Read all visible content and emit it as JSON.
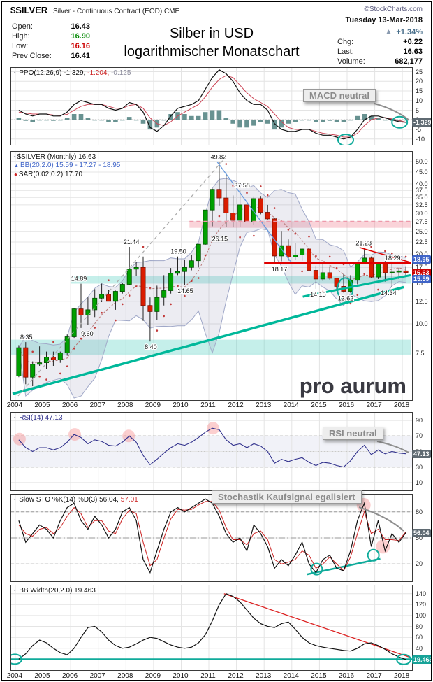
{
  "header": {
    "symbol": "$SILVER",
    "description": "Silver - Continuous Contract (EOD) CME",
    "copyright": "©StockCharts.com",
    "date": "Tuesday 13-Mar-2018",
    "open_label": "Open:",
    "open": "16.43",
    "high_label": "High:",
    "high": "16.90",
    "low_label": "Low:",
    "low": "16.16",
    "prev_close_label": "Prev Close:",
    "prev_close": "16.41",
    "title_line1": "Silber in USD",
    "title_line2": "logarithmischer Monatschart",
    "up_arrow": "▲",
    "change_pct": "+1.34%",
    "chg_label": "Chg:",
    "chg": "+0.22",
    "last_label": "Last:",
    "last": "16.63",
    "volume_label": "Volume:",
    "volume": "682,177"
  },
  "watermark": "pro aurum",
  "panels": {
    "ppo": {
      "icon": "▪",
      "label": "PPO(12,26,9)",
      "v1": "-1.329,",
      "v2": "-1.204,",
      "v3": "-0.125",
      "tag": "-1.329"
    },
    "price": {
      "icon": "▪",
      "label": "$SILVER (Monthly) 16.63",
      "bb_icon": "▲",
      "bb_label": "BB(20,2.0) 15.59 - 17.27 - 18.95",
      "sar_icon": "●",
      "sar_label": "SAR(0.02,0.2) 17.70",
      "tags": [
        {
          "text": "18.95",
          "value": 18.95,
          "color": "#3f64c8"
        },
        {
          "text": "16.63",
          "value": 16.63,
          "color": "#cc0000"
        },
        {
          "text": "15.59",
          "value": 15.59,
          "color": "#3f64c8"
        }
      ]
    },
    "rsi": {
      "icon": "▪",
      "label": "RSI(14) 47.13",
      "tag": "47.13"
    },
    "sto": {
      "icon": "▪",
      "label": "Slow STO %K(14) %D(3) 56.04,",
      "label_red": "57.01",
      "tag": "56.04"
    },
    "bbw": {
      "icon": "▪",
      "label": "BB Width(20,2.0) 19.463",
      "tag": "19.463"
    }
  },
  "x_axis": {
    "years": [
      2004,
      2005,
      2006,
      2007,
      2008,
      2009,
      2010,
      2011,
      2012,
      2013,
      2014,
      2015,
      2016,
      2017,
      2018
    ]
  },
  "chart_data": [
    {
      "id": "ppo",
      "type": "line+histogram",
      "title": "PPO(12,26,9)",
      "annotation": "MACD neutral",
      "ylim": [
        -13,
        27
      ],
      "yticks": [
        25,
        20,
        15,
        10,
        5,
        0,
        -5,
        -10
      ],
      "x_start": 2004.125,
      "x_step_years": 0.25,
      "last": {
        "ppo": -1.329,
        "signal": -1.204,
        "hist": -0.125
      },
      "series": [
        {
          "name": "PPO",
          "color": "#111111",
          "values": [
            5,
            3,
            2,
            3,
            3,
            2,
            2,
            4,
            8,
            10,
            9,
            8,
            8,
            6,
            5,
            6,
            9,
            8,
            4,
            -4,
            -6,
            -3,
            2,
            6,
            7,
            8,
            10,
            16,
            22,
            26,
            24,
            20,
            14,
            10,
            8,
            8,
            5,
            -2,
            -5,
            -6,
            -6,
            -5,
            -5,
            -7,
            -8,
            -8,
            -9,
            -10,
            -9,
            -5,
            0,
            2,
            2,
            1,
            0,
            -1,
            -1.329
          ]
        },
        {
          "name": "Signal",
          "color": "#cc4455",
          "values": [
            4,
            3.5,
            3,
            3,
            3,
            2.5,
            2.3,
            2.8,
            5,
            7,
            8,
            8,
            8,
            7,
            6,
            6,
            7.5,
            8,
            6,
            1,
            -2,
            -3,
            -1,
            2,
            4,
            6,
            8,
            12,
            17,
            21,
            23,
            22,
            18,
            14,
            11,
            9,
            7,
            3,
            -1,
            -4,
            -5,
            -5,
            -5,
            -6,
            -7,
            -7.5,
            -8,
            -9,
            -9,
            -7,
            -3,
            0,
            1,
            1.2,
            0.5,
            -0.3,
            -1.204
          ]
        }
      ],
      "highlight_circles": [
        {
          "x": 2015.95,
          "y": -10.5
        },
        {
          "x": 2017.9,
          "y": -1.3
        }
      ]
    },
    {
      "id": "price",
      "type": "candlestick",
      "title": "$SILVER (Monthly) 16.63",
      "log_scale": true,
      "ylim": [
        4.7,
        55
      ],
      "yticks": [
        50,
        45,
        40,
        37.5,
        35,
        32.5,
        30,
        27.5,
        25,
        22.5,
        20,
        17.5,
        15,
        12.5,
        10,
        7.5
      ],
      "x_start": 2004.125,
      "x_step_years": 0.25,
      "bollinger": {
        "params": "20,2.0",
        "lower": 15.59,
        "mid": 17.27,
        "upper": 18.95
      },
      "sar": 17.7,
      "last": 16.63,
      "open": [
        5.97,
        7.9,
        5.9,
        6.7,
        6.8,
        7.2,
        7.0,
        7.5,
        8.8,
        11.6,
        10.9,
        11.5,
        12.9,
        13.4,
        12.5,
        13.8,
        14.8,
        17.2,
        17.5,
        12.0,
        11.3,
        13.0,
        13.9,
        16.5,
        16.8,
        17.5,
        18.7,
        22.0,
        30.9,
        37.9,
        34.8,
        30.0,
        27.9,
        32.5,
        27.6,
        34.6,
        30.2,
        28.3,
        19.6,
        21.7,
        19.4,
        19.8,
        21.0,
        17.0,
        15.6,
        16.6,
        15.7,
        14.5,
        13.8,
        15.4,
        18.4,
        19.2,
        15.9,
        18.2,
        16.6,
        16.7,
        16.9
      ],
      "high": [
        8.1,
        8.35,
        6.9,
        8.0,
        7.6,
        7.6,
        7.6,
        9.0,
        11.7,
        14.89,
        13.0,
        14.1,
        14.9,
        14.0,
        13.9,
        15.0,
        21.44,
        18.4,
        19.5,
        13.0,
        14.6,
        16.2,
        17.4,
        19.5,
        18.9,
        19.8,
        22.1,
        30.9,
        38.2,
        49.82,
        44.3,
        35.7,
        37.58,
        33.3,
        35.4,
        35.5,
        32.5,
        28.6,
        25.1,
        23.1,
        22.2,
        21.1,
        21.6,
        17.8,
        18.5,
        17.7,
        15.8,
        16.4,
        16.2,
        18.4,
        21.23,
        19.5,
        18.5,
        18.7,
        18.29,
        17.4,
        17.7
      ],
      "low": [
        5.9,
        5.5,
        5.4,
        6.6,
        6.4,
        6.6,
        6.8,
        7.3,
        8.7,
        9.6,
        9.9,
        10.7,
        12.4,
        12.5,
        11.5,
        13.5,
        14.7,
        16.1,
        10.3,
        8.4,
        10.4,
        12.0,
        13.5,
        16.2,
        14.65,
        17.0,
        17.5,
        21.9,
        26.3,
        32.3,
        26.1,
        26.0,
        26.2,
        26.1,
        26.6,
        29.6,
        28.1,
        18.17,
        18.6,
        18.7,
        18.8,
        18.7,
        16.8,
        14.15,
        15.3,
        15.5,
        13.9,
        13.62,
        13.6,
        14.8,
        18.2,
        15.7,
        15.6,
        15.2,
        14.34,
        15.6,
        16.1
      ],
      "close": [
        7.9,
        5.9,
        6.7,
        6.8,
        7.2,
        7.0,
        7.5,
        8.8,
        11.6,
        10.9,
        11.5,
        12.9,
        13.4,
        12.5,
        13.8,
        14.8,
        17.2,
        17.5,
        12.0,
        11.3,
        13.0,
        13.9,
        16.5,
        16.8,
        17.5,
        18.7,
        22.0,
        30.9,
        37.9,
        34.8,
        30.0,
        27.9,
        32.5,
        27.6,
        34.6,
        30.2,
        28.3,
        19.6,
        21.7,
        19.4,
        19.8,
        21.0,
        17.0,
        15.6,
        16.6,
        15.7,
        14.5,
        13.8,
        15.4,
        18.4,
        19.2,
        15.9,
        18.2,
        16.6,
        16.7,
        16.9,
        16.63
      ],
      "annotations": [
        {
          "x": 2004.4,
          "y": 8.35,
          "text": "8.35",
          "pos": "above"
        },
        {
          "x": 2006.3,
          "y": 14.89,
          "text": "14.89",
          "pos": "above"
        },
        {
          "x": 2006.6,
          "y": 9.6,
          "text": "9.60",
          "pos": "below"
        },
        {
          "x": 2008.2,
          "y": 21.44,
          "text": "21.44",
          "pos": "above"
        },
        {
          "x": 2008.9,
          "y": 8.4,
          "text": "8.40",
          "pos": "below"
        },
        {
          "x": 2009.9,
          "y": 19.5,
          "text": "19.50",
          "pos": "above"
        },
        {
          "x": 2010.15,
          "y": 14.65,
          "text": "14.65",
          "pos": "below"
        },
        {
          "x": 2011.35,
          "y": 49.82,
          "text": "49.82",
          "pos": "above"
        },
        {
          "x": 2011.4,
          "y": 24.5,
          "text": "26.15",
          "pos": "below"
        },
        {
          "x": 2012.2,
          "y": 37.58,
          "text": "37.58",
          "pos": "above"
        },
        {
          "x": 2013.55,
          "y": 18.17,
          "text": "18.17",
          "pos": "below"
        },
        {
          "x": 2014.95,
          "y": 14.15,
          "text": "14.15",
          "pos": "below"
        },
        {
          "x": 2015.95,
          "y": 13.62,
          "text": "13.62",
          "pos": "below"
        },
        {
          "x": 2016.6,
          "y": 21.23,
          "text": "21.23",
          "pos": "above"
        },
        {
          "x": 2017.65,
          "y": 18.29,
          "text": "18.29",
          "pos": "above"
        },
        {
          "x": 2017.5,
          "y": 14.34,
          "text": "14.34",
          "pos": "below"
        }
      ],
      "zones": [
        {
          "x1": 2010.3,
          "x2": 2018.32,
          "y1": 25.9,
          "y2": 27.6,
          "color": "rgba(242,130,145,0.35)"
        },
        {
          "x1": 2006.0,
          "x2": 2018.32,
          "y1": 14.9,
          "y2": 16.05,
          "color": "rgba(80,205,190,0.33)"
        },
        {
          "x1": 2003.85,
          "x2": 2018.32,
          "y1": 7.35,
          "y2": 8.55,
          "color": "rgba(80,205,190,0.33)"
        }
      ],
      "lines": [
        {
          "x1": 2003.9,
          "y1": 5.0,
          "x2": 2018.05,
          "y2": 14.4,
          "color": "#00b89a",
          "width": 3.5
        },
        {
          "x1": 2014.4,
          "y1": 13.1,
          "x2": 2018.3,
          "y2": 16.2,
          "color": "#00b89a",
          "width": 3
        },
        {
          "x1": 2013.0,
          "y1": 18.25,
          "x2": 2018.32,
          "y2": 18.25,
          "color": "#e00000",
          "width": 2.5
        },
        {
          "x1": 2016.45,
          "y1": 21.3,
          "x2": 2018.32,
          "y2": 18.35,
          "color": "#e00000",
          "width": 1.5
        },
        {
          "x1": 2011.3,
          "y1": 49.8,
          "x2": 2013.95,
          "y2": 18.6,
          "color": "#6699dd",
          "width": 1.3
        },
        {
          "x1": 2004.1,
          "y1": 4.9,
          "x2": 2011.6,
          "y2": 52.0,
          "color": "#aaaaaa",
          "width": 1.2,
          "dash": "5,4"
        },
        {
          "x1": 2010.3,
          "y1": 27.6,
          "x2": 2018.32,
          "y2": 27.6,
          "color": "#ee99aa",
          "width": 1.5,
          "dash": "6,4"
        }
      ],
      "circles": [
        {
          "x": 2015.93,
          "y": 14.1
        }
      ]
    },
    {
      "id": "rsi",
      "type": "line",
      "title": "RSI(14)",
      "annotation": "RSI neutral",
      "ylim": [
        0,
        100
      ],
      "yticks": [
        90,
        70,
        50,
        30,
        10
      ],
      "band": [
        30,
        70
      ],
      "last": 47.13,
      "x_start": 2004.125,
      "x_step_years": 0.25,
      "values": [
        65,
        55,
        50,
        55,
        55,
        52,
        55,
        62,
        72,
        68,
        60,
        65,
        63,
        58,
        57,
        62,
        70,
        62,
        45,
        33,
        40,
        48,
        55,
        60,
        58,
        62,
        68,
        75,
        80,
        78,
        65,
        58,
        60,
        55,
        60,
        57,
        50,
        35,
        40,
        37,
        40,
        42,
        36,
        32,
        36,
        35,
        32,
        30,
        38,
        50,
        58,
        46,
        52,
        47,
        50,
        48,
        47.13
      ],
      "highlight_circles": [
        {
          "x": 2004.15,
          "y": 66
        },
        {
          "x": 2006.15,
          "y": 72
        },
        {
          "x": 2008.1,
          "y": 70
        },
        {
          "x": 2011.15,
          "y": 80
        }
      ]
    },
    {
      "id": "sto",
      "type": "line",
      "title": "Slow STO %K(14) %D(3)",
      "annotation": "Stochastik Kaufsignal egalisiert",
      "ylim": [
        0,
        100
      ],
      "yticks": [
        80,
        50,
        20
      ],
      "last_k": 56.04,
      "last_d": 57.01,
      "x_start": 2004.125,
      "x_step_years": 0.25,
      "k": [
        70,
        45,
        55,
        65,
        60,
        50,
        70,
        85,
        90,
        70,
        60,
        75,
        65,
        50,
        60,
        80,
        85,
        70,
        25,
        10,
        35,
        60,
        80,
        85,
        80,
        85,
        90,
        95,
        90,
        75,
        55,
        45,
        50,
        35,
        65,
        55,
        40,
        15,
        25,
        18,
        30,
        45,
        20,
        10,
        25,
        30,
        15,
        12,
        35,
        70,
        90,
        40,
        70,
        35,
        55,
        45,
        56.04
      ],
      "d": [
        65,
        55,
        52,
        60,
        62,
        55,
        62,
        75,
        85,
        78,
        62,
        70,
        70,
        58,
        55,
        72,
        82,
        78,
        45,
        18,
        25,
        50,
        72,
        83,
        82,
        83,
        88,
        92,
        92,
        82,
        62,
        48,
        48,
        42,
        55,
        58,
        48,
        25,
        20,
        22,
        25,
        35,
        30,
        15,
        20,
        28,
        20,
        12,
        28,
        55,
        80,
        55,
        60,
        48,
        48,
        47,
        57.01
      ],
      "highlight_circles_pink": [
        {
          "x": 2016.6,
          "y": 88
        },
        {
          "x": 2017.3,
          "y": 40
        }
      ],
      "highlight_circles_teal": [
        {
          "x": 2014.9,
          "y": 14
        },
        {
          "x": 2016.95,
          "y": 30
        }
      ],
      "trend_line": {
        "x1": 2014.55,
        "y1": 8,
        "x2": 2017.2,
        "y2": 26
      }
    },
    {
      "id": "bbw",
      "type": "line",
      "title": "BB Width(20,2.0)",
      "ylim": [
        0,
        155
      ],
      "yticks": [
        140,
        120,
        100,
        80,
        60,
        40,
        20
      ],
      "last": 19.463,
      "x_start": 2004.125,
      "x_step_years": 0.25,
      "values": [
        20,
        30,
        45,
        55,
        50,
        40,
        32,
        28,
        40,
        60,
        78,
        80,
        70,
        55,
        45,
        40,
        42,
        48,
        55,
        60,
        58,
        52,
        46,
        42,
        40,
        42,
        50,
        65,
        90,
        120,
        140,
        135,
        125,
        110,
        95,
        85,
        80,
        78,
        85,
        88,
        75,
        60,
        50,
        45,
        42,
        40,
        38,
        36,
        35,
        40,
        48,
        50,
        45,
        38,
        30,
        24,
        19.463
      ],
      "support_line_y": 20,
      "trend_line": {
        "x1": 2011.55,
        "y1": 140,
        "x2": 2018.3,
        "y2": 23
      },
      "circles": [
        {
          "x": 2003.98,
          "y": 20
        },
        {
          "x": 2018.05,
          "y": 19.5
        }
      ]
    }
  ]
}
